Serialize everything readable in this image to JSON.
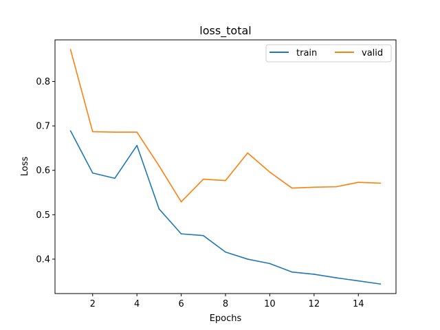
{
  "chart_data": {
    "type": "line",
    "title": "loss_total",
    "xlabel": "Epochs",
    "ylabel": "Loss",
    "xlim": [
      0.3,
      15.7
    ],
    "ylim": [
      0.3225,
      0.8937
    ],
    "xticks": [
      2,
      4,
      6,
      8,
      10,
      12,
      14
    ],
    "yticks": [
      0.4,
      0.5,
      0.6,
      0.7,
      0.8
    ],
    "grid": false,
    "legend": {
      "placement": "top-right",
      "columns": 2
    },
    "x": [
      1,
      2,
      3,
      4,
      5,
      6,
      7,
      8,
      9,
      10,
      11,
      12,
      13,
      14,
      15
    ],
    "series": [
      {
        "name": "train",
        "color": "#1f77b4",
        "values": [
          0.689,
          0.594,
          0.582,
          0.656,
          0.513,
          0.457,
          0.453,
          0.416,
          0.4,
          0.39,
          0.371,
          0.366,
          0.358,
          0.351,
          0.344
        ]
      },
      {
        "name": "valid",
        "color": "#ff7f0e",
        "values": [
          0.872,
          0.687,
          0.686,
          0.686,
          0.61,
          0.529,
          0.58,
          0.577,
          0.639,
          0.596,
          0.56,
          0.562,
          0.563,
          0.573,
          0.571
        ]
      }
    ]
  }
}
